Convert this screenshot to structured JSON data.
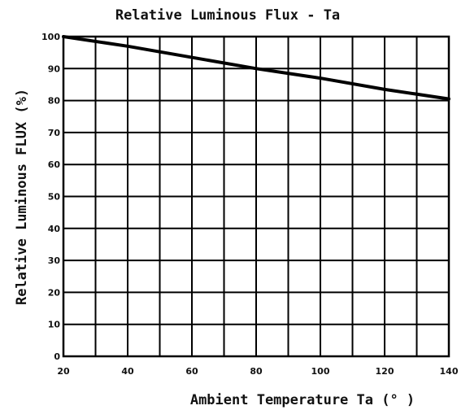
{
  "chart_data": {
    "type": "line",
    "title": "Relative Luminous Flux - Ta",
    "xlabel": "Ambient Temperature Ta (° )",
    "ylabel": "Relative Luminous FLUX (%)",
    "xlim": [
      20,
      140
    ],
    "ylim": [
      0,
      100
    ],
    "grid": true,
    "x_ticks": [
      20,
      40,
      60,
      80,
      100,
      120,
      140
    ],
    "y_ticks": [
      0,
      10,
      20,
      30,
      40,
      50,
      60,
      70,
      80,
      90,
      100
    ],
    "series": [
      {
        "x": [
          20,
          40,
          60,
          80,
          100,
          120,
          140
        ],
        "values": [
          100,
          97,
          93.5,
          90,
          87,
          83.5,
          80.5
        ],
        "color": "#000000"
      }
    ]
  }
}
